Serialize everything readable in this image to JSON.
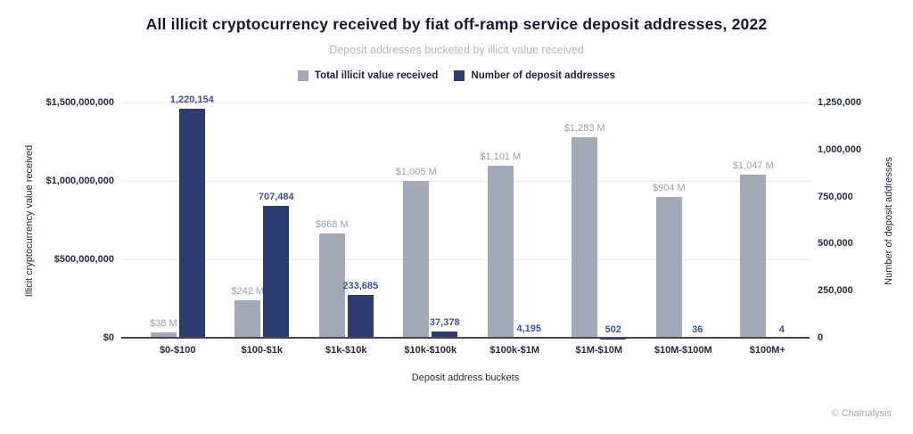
{
  "title": "All illicit cryptocurrency received by fiat off-ramp service deposit addresses, 2022",
  "subtitle": "Deposit addresses bucketed by illicit value received",
  "legend": [
    {
      "label": "Total illicit value received",
      "color": "#a3aab7"
    },
    {
      "label": "Number of deposit addresses",
      "color": "#2d3b6e"
    }
  ],
  "footer": "© Chainalysis",
  "colors": {
    "gray_bar": "#a3aab7",
    "navy_bar": "#2d3b6e",
    "gray_label": "#98a0b0",
    "navy_label": "#3b5196",
    "gridline": "#e8e8ec",
    "axis_line": "#474747"
  },
  "chart_data": {
    "type": "bar",
    "title": "All illicit cryptocurrency received by fiat off-ramp service deposit addresses, 2022",
    "subtitle": "Deposit addresses bucketed by illicit value received",
    "xlabel": "Deposit address buckets",
    "grid": "horizontal",
    "legend_position": "top-center",
    "categories": [
      "$0-$100",
      "$100-$1k",
      "$1k-$10k",
      "$10k-$100k",
      "$100k-$1M",
      "$1M-$10M",
      "$10M-$100M",
      "$100M+"
    ],
    "series": [
      {
        "name": "Total illicit value received",
        "axis": "left",
        "color": "#a3aab7",
        "label_color": "#98a0b0",
        "values": [
          38000000,
          242000000,
          668000000,
          1005000000,
          1101000000,
          1283000000,
          904000000,
          1047000000
        ],
        "labels": [
          "$38 M",
          "$242 M",
          "$668 M",
          "$1,005 M",
          "$1,101 M",
          "$1,283 M",
          "$904 M",
          "$1,047 M"
        ]
      },
      {
        "name": "Number of deposit addresses",
        "axis": "right",
        "color": "#2d3b6e",
        "label_color": "#3b5196",
        "values": [
          1220154,
          707484,
          233685,
          37378,
          4195,
          502,
          36,
          4
        ],
        "labels": [
          "1,220,154",
          "707,484",
          "233,685",
          "37,378",
          "4,195",
          "502",
          "36",
          "4"
        ]
      }
    ],
    "left_axis": {
      "title": "Illicit cryptocurrency value received",
      "ticks": [
        "$0",
        "$500,000,000",
        "$1,000,000,000",
        "$1,500,000,000"
      ],
      "min": 0,
      "max": 1500000000
    },
    "right_axis": {
      "title": "Number of deposit addresses",
      "ticks": [
        "0",
        "250,000",
        "500,000",
        "750,000",
        "1,000,000",
        "1,250,000"
      ],
      "min": 0,
      "max": 1250000
    }
  }
}
